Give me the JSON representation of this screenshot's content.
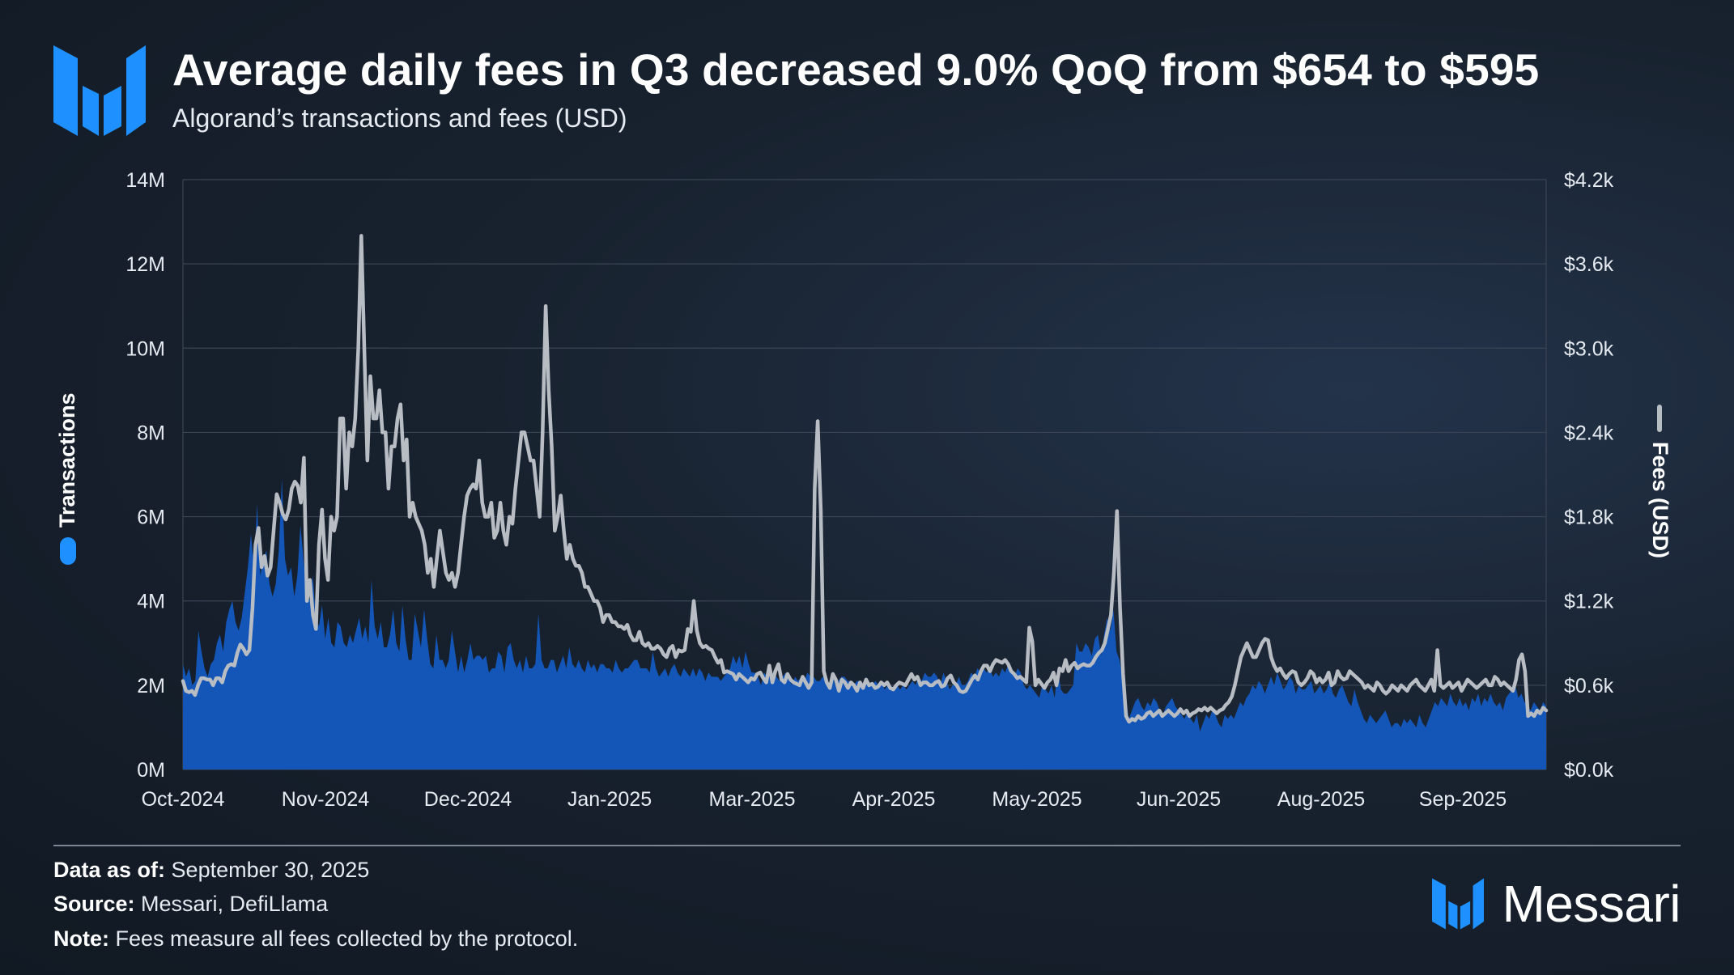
{
  "header": {
    "title": "Average daily fees in Q3 decreased 9.0% QoQ from $654 to $595",
    "subtitle": "Algorand’s transactions and fees (USD)"
  },
  "colors": {
    "transactions": "#1356b8",
    "fees": "#b8bcc3",
    "accent": "#1e90ff",
    "grid": "#3a4454",
    "text": "#ffffff"
  },
  "chart_data": {
    "type": "area",
    "x_ticks": [
      "Oct-2024",
      "Nov-2024",
      "Dec-2024",
      "Jan-2025",
      "Mar-2025",
      "Apr-2025",
      "May-2025",
      "Jun-2025",
      "Aug-2025",
      "Sep-2025"
    ],
    "y_left": {
      "label": "Transactions",
      "ticks": [
        "0M",
        "2M",
        "4M",
        "6M",
        "8M",
        "10M",
        "12M",
        "14M"
      ],
      "range": [
        0,
        14000000
      ]
    },
    "y_right": {
      "label": "Fees (USD)",
      "ticks": [
        "$0.0k",
        "$0.6k",
        "$1.2k",
        "$1.8k",
        "$2.4k",
        "$3.0k",
        "$3.6k",
        "$4.2k"
      ],
      "range": [
        0,
        4200
      ]
    },
    "series": [
      {
        "name": "Transactions",
        "type": "area",
        "axis": "left",
        "values": [
          2.5,
          2.2,
          2.4,
          2.0,
          2.1,
          3.3,
          2.8,
          2.4,
          2.2,
          2.5,
          2.6,
          3.0,
          3.2,
          2.8,
          3.5,
          3.8,
          4.0,
          3.5,
          3.3,
          3.6,
          4.2,
          4.8,
          5.6,
          4.8,
          6.3,
          4.6,
          5.0,
          5.2,
          4.4,
          4.1,
          4.4,
          5.2,
          6.9,
          5.0,
          4.6,
          4.8,
          4.1,
          4.6,
          5.8,
          5.0,
          4.2,
          4.0,
          4.6,
          3.6,
          3.4,
          3.9,
          3.1,
          3.6,
          3.0,
          2.9,
          3.5,
          3.4,
          3.0,
          2.9,
          3.2,
          3.0,
          3.3,
          3.6,
          3.1,
          3.4,
          3.0,
          4.5,
          3.4,
          3.1,
          3.5,
          2.9,
          2.9,
          3.2,
          3.8,
          3.0,
          2.8,
          3.9,
          3.1,
          2.6,
          2.6,
          3.7,
          3.3,
          2.9,
          3.8,
          3.1,
          2.5,
          2.4,
          3.2,
          2.6,
          2.6,
          2.4,
          2.6,
          3.3,
          2.8,
          2.3,
          2.7,
          2.3,
          2.6,
          3.0,
          2.6,
          2.7,
          2.7,
          2.6,
          2.7,
          2.3,
          2.4,
          2.4,
          2.8,
          2.7,
          2.3,
          2.9,
          3.0,
          2.6,
          2.4,
          2.6,
          2.3,
          2.7,
          2.4,
          2.4,
          2.5,
          3.7,
          2.6,
          2.4,
          2.4,
          2.6,
          2.6,
          2.3,
          2.5,
          2.7,
          2.4,
          2.9,
          2.5,
          2.4,
          2.6,
          2.4,
          2.3,
          2.6,
          2.4,
          2.5,
          2.3,
          2.5,
          2.5,
          2.4,
          2.4,
          2.3,
          2.6,
          2.4,
          2.3,
          2.4,
          2.4,
          2.5,
          2.6,
          2.6,
          2.4,
          2.4,
          2.4,
          2.3,
          2.8,
          2.4,
          2.2,
          2.3,
          2.4,
          2.2,
          2.4,
          2.5,
          2.3,
          2.2,
          2.4,
          2.3,
          2.2,
          2.4,
          2.2,
          2.4,
          2.3,
          2.1,
          2.3,
          2.2,
          2.2,
          2.2,
          2.1,
          2.2,
          2.3,
          2.4,
          2.7,
          2.5,
          2.7,
          2.4,
          2.8,
          2.5,
          2.3,
          2.3,
          2.2,
          2.0,
          2.3,
          2.2,
          2.2,
          2.3,
          2.2,
          2.1,
          2.2,
          2.3,
          2.2,
          2.0,
          2.2,
          2.1,
          2.2,
          2.1,
          2.3,
          2.2,
          2.2,
          2.1,
          2.1,
          2.2,
          2.1,
          2.0,
          2.3,
          2.0,
          2.1,
          2.2,
          2.2,
          2.1,
          2.1,
          2.0,
          2.1,
          2.1,
          2.0,
          2.2,
          2.0,
          2.0,
          2.1,
          2.0,
          2.1,
          1.9,
          2.0,
          2.0,
          1.9,
          2.0,
          1.9,
          2.0,
          1.9,
          2.0,
          2.1,
          2.0,
          2.2,
          2.1,
          2.3,
          2.2,
          2.2,
          2.3,
          2.2,
          2.0,
          2.3,
          2.1,
          1.9,
          2.0,
          2.0,
          2.2,
          2.0,
          2.0,
          2.1,
          2.3,
          2.2,
          2.4,
          2.3,
          2.4,
          2.3,
          2.4,
          2.2,
          2.3,
          2.2,
          2.4,
          2.3,
          2.5,
          2.4,
          2.2,
          2.4,
          2.3,
          2.0,
          1.9,
          2.0,
          1.9,
          1.8,
          1.7,
          2.0,
          1.9,
          1.8,
          2.0,
          1.7,
          2.4,
          1.9,
          1.8,
          1.8,
          1.9,
          2.0,
          3.0,
          2.8,
          2.8,
          3.0,
          2.9,
          2.7,
          3.1,
          3.2,
          2.7,
          3.2,
          3.6,
          3.3,
          3.8,
          2.8,
          2.6,
          2.1,
          1.7,
          1.2,
          1.4,
          1.6,
          1.7,
          1.5,
          1.4,
          1.6,
          1.5,
          1.7,
          1.6,
          1.4,
          1.3,
          1.5,
          1.6,
          1.7,
          1.5,
          1.4,
          1.3,
          1.2,
          1.4,
          1.2,
          1.1,
          1.3,
          0.9,
          1.1,
          1.3,
          1.2,
          1.4,
          1.3,
          1.1,
          1.0,
          1.3,
          1.2,
          1.3,
          1.2,
          1.4,
          1.6,
          1.5,
          1.7,
          1.8,
          2.0,
          1.9,
          2.1,
          2.0,
          1.8,
          2.0,
          2.2,
          2.0,
          2.3,
          2.1,
          1.9,
          2.0,
          2.2,
          2.1,
          1.8,
          2.0,
          1.9,
          1.9,
          2.0,
          2.1,
          1.8,
          1.9,
          2.0,
          1.8,
          1.9,
          2.1,
          1.8,
          1.7,
          1.9,
          2.0,
          1.8,
          1.6,
          1.5,
          1.9,
          1.6,
          1.4,
          1.2,
          1.1,
          1.3,
          1.2,
          1.1,
          1.2,
          1.3,
          1.4,
          1.2,
          1.0,
          1.1,
          1.1,
          1.0,
          1.2,
          1.1,
          1.2,
          1.1,
          1.0,
          1.3,
          1.1,
          1.0,
          1.2,
          1.4,
          1.6,
          1.5,
          1.7,
          1.6,
          1.5,
          1.8,
          1.6,
          1.5,
          1.7,
          1.5,
          1.6,
          1.4,
          1.7,
          1.6,
          1.8,
          1.5,
          1.7,
          1.6,
          1.8,
          1.6,
          1.5,
          1.6,
          1.4,
          1.7,
          1.8,
          1.9,
          2.0,
          1.7,
          1.8,
          1.6,
          1.5,
          1.4,
          1.6,
          1.5,
          1.4,
          1.6,
          1.5
        ]
      },
      {
        "name": "Fees (USD)",
        "type": "line",
        "axis": "right",
        "values": [
          630,
          560,
          550,
          560,
          530,
          600,
          650,
          650,
          640,
          640,
          600,
          650,
          650,
          620,
          700,
          740,
          750,
          740,
          830,
          890,
          860,
          820,
          850,
          1150,
          1600,
          1720,
          1440,
          1520,
          1380,
          1440,
          1700,
          1960,
          1900,
          1820,
          1780,
          1850,
          2000,
          2050,
          2020,
          1900,
          2220,
          1200,
          1350,
          1100,
          1000,
          1600,
          1850,
          1500,
          1350,
          1800,
          1700,
          1800,
          2500,
          2500,
          2000,
          2400,
          2300,
          2500,
          3000,
          3800,
          3000,
          2200,
          2800,
          2500,
          2500,
          2700,
          2400,
          2400,
          2000,
          2300,
          2300,
          2500,
          2600,
          2200,
          2350,
          1800,
          1900,
          1800,
          1750,
          1700,
          1600,
          1400,
          1500,
          1300,
          1500,
          1700,
          1550,
          1400,
          1350,
          1400,
          1300,
          1400,
          1600,
          1800,
          1950,
          2000,
          2030,
          2000,
          2200,
          1900,
          1800,
          1800,
          1900,
          1650,
          1700,
          1900,
          1700,
          1600,
          1800,
          1750,
          2000,
          2200,
          2400,
          2400,
          2300,
          2200,
          2200,
          2000,
          1800,
          2400,
          3300,
          2700,
          2300,
          1700,
          1800,
          1950,
          1700,
          1500,
          1600,
          1500,
          1450,
          1450,
          1400,
          1300,
          1300,
          1250,
          1200,
          1200,
          1150,
          1050,
          1100,
          1100,
          1050,
          1050,
          1020,
          1020,
          1000,
          1030,
          960,
          920,
          920,
          980,
          900,
          880,
          900,
          860,
          860,
          880,
          860,
          820,
          800,
          860,
          880,
          800,
          850,
          840,
          850,
          1000,
          980,
          1200,
          990,
          900,
          870,
          880,
          860,
          850,
          800,
          760,
          780,
          690,
          700,
          690,
          680,
          640,
          680,
          660,
          640,
          620,
          650,
          640,
          680,
          690,
          650,
          620,
          740,
          620,
          700,
          750,
          640,
          620,
          680,
          640,
          620,
          610,
          600,
          660,
          620,
          580,
          620,
          2000,
          2480,
          1850,
          700,
          620,
          580,
          680,
          640,
          560,
          640,
          620,
          580,
          620,
          600,
          560,
          620,
          580,
          640,
          600,
          610,
          580,
          590,
          620,
          600,
          620,
          580,
          570,
          600,
          620,
          610,
          600,
          640,
          680,
          640,
          660,
          600,
          620,
          620,
          600,
          600,
          620,
          630,
          590,
          600,
          650,
          670,
          620,
          600,
          560,
          550,
          560,
          600,
          640,
          670,
          640,
          700,
          740,
          740,
          700,
          750,
          780,
          770,
          760,
          780,
          750,
          700,
          680,
          650,
          660,
          640,
          620,
          1010,
          910,
          600,
          640,
          610,
          580,
          620,
          640,
          690,
          600,
          720,
          700,
          780,
          700,
          740,
          760,
          720,
          740,
          750,
          740,
          740,
          760,
          800,
          830,
          850,
          900,
          1000,
          1100,
          1400,
          1840,
          1160,
          680,
          380,
          340,
          360,
          350,
          380,
          360,
          370,
          400,
          410,
          380,
          400,
          420,
          380,
          400,
          420,
          400,
          380,
          400,
          430,
          400,
          420,
          380,
          400,
          410,
          430,
          420,
          440,
          420,
          440,
          420,
          400,
          420,
          430,
          460,
          480,
          520,
          600,
          700,
          800,
          850,
          900,
          850,
          800,
          800,
          850,
          900,
          930,
          920,
          800,
          740,
          700,
          720,
          680,
          650,
          680,
          700,
          690,
          620,
          600,
          620,
          650,
          700,
          680,
          620,
          650,
          620,
          640,
          690,
          600,
          620,
          700,
          660,
          640,
          650,
          700,
          680,
          660,
          640,
          620,
          580,
          600,
          580,
          560,
          620,
          600,
          560,
          540,
          560,
          600,
          580,
          560,
          600,
          580,
          560,
          600,
          620,
          640,
          600,
          580,
          560,
          600,
          640,
          560,
          850,
          600,
          580,
          600,
          620,
          580,
          600,
          620,
          560,
          600,
          640,
          620,
          600,
          580,
          600,
          620,
          640,
          600,
          600,
          660,
          640,
          600,
          620,
          600,
          580,
          560,
          640,
          780,
          820,
          700,
          380,
          400,
          380,
          420,
          400,
          440,
          420
        ]
      }
    ],
    "grid": true,
    "legend": "axis-labels"
  },
  "footer": {
    "data_as_of_label": "Data as of:",
    "data_as_of_value": " September 30, 2025",
    "source_label": "Source:",
    "source_value": " Messari, DefiLlama",
    "note_label": "Note:",
    "note_value": " Fees measure all fees collected by the protocol."
  },
  "brand": {
    "name": "Messari"
  }
}
